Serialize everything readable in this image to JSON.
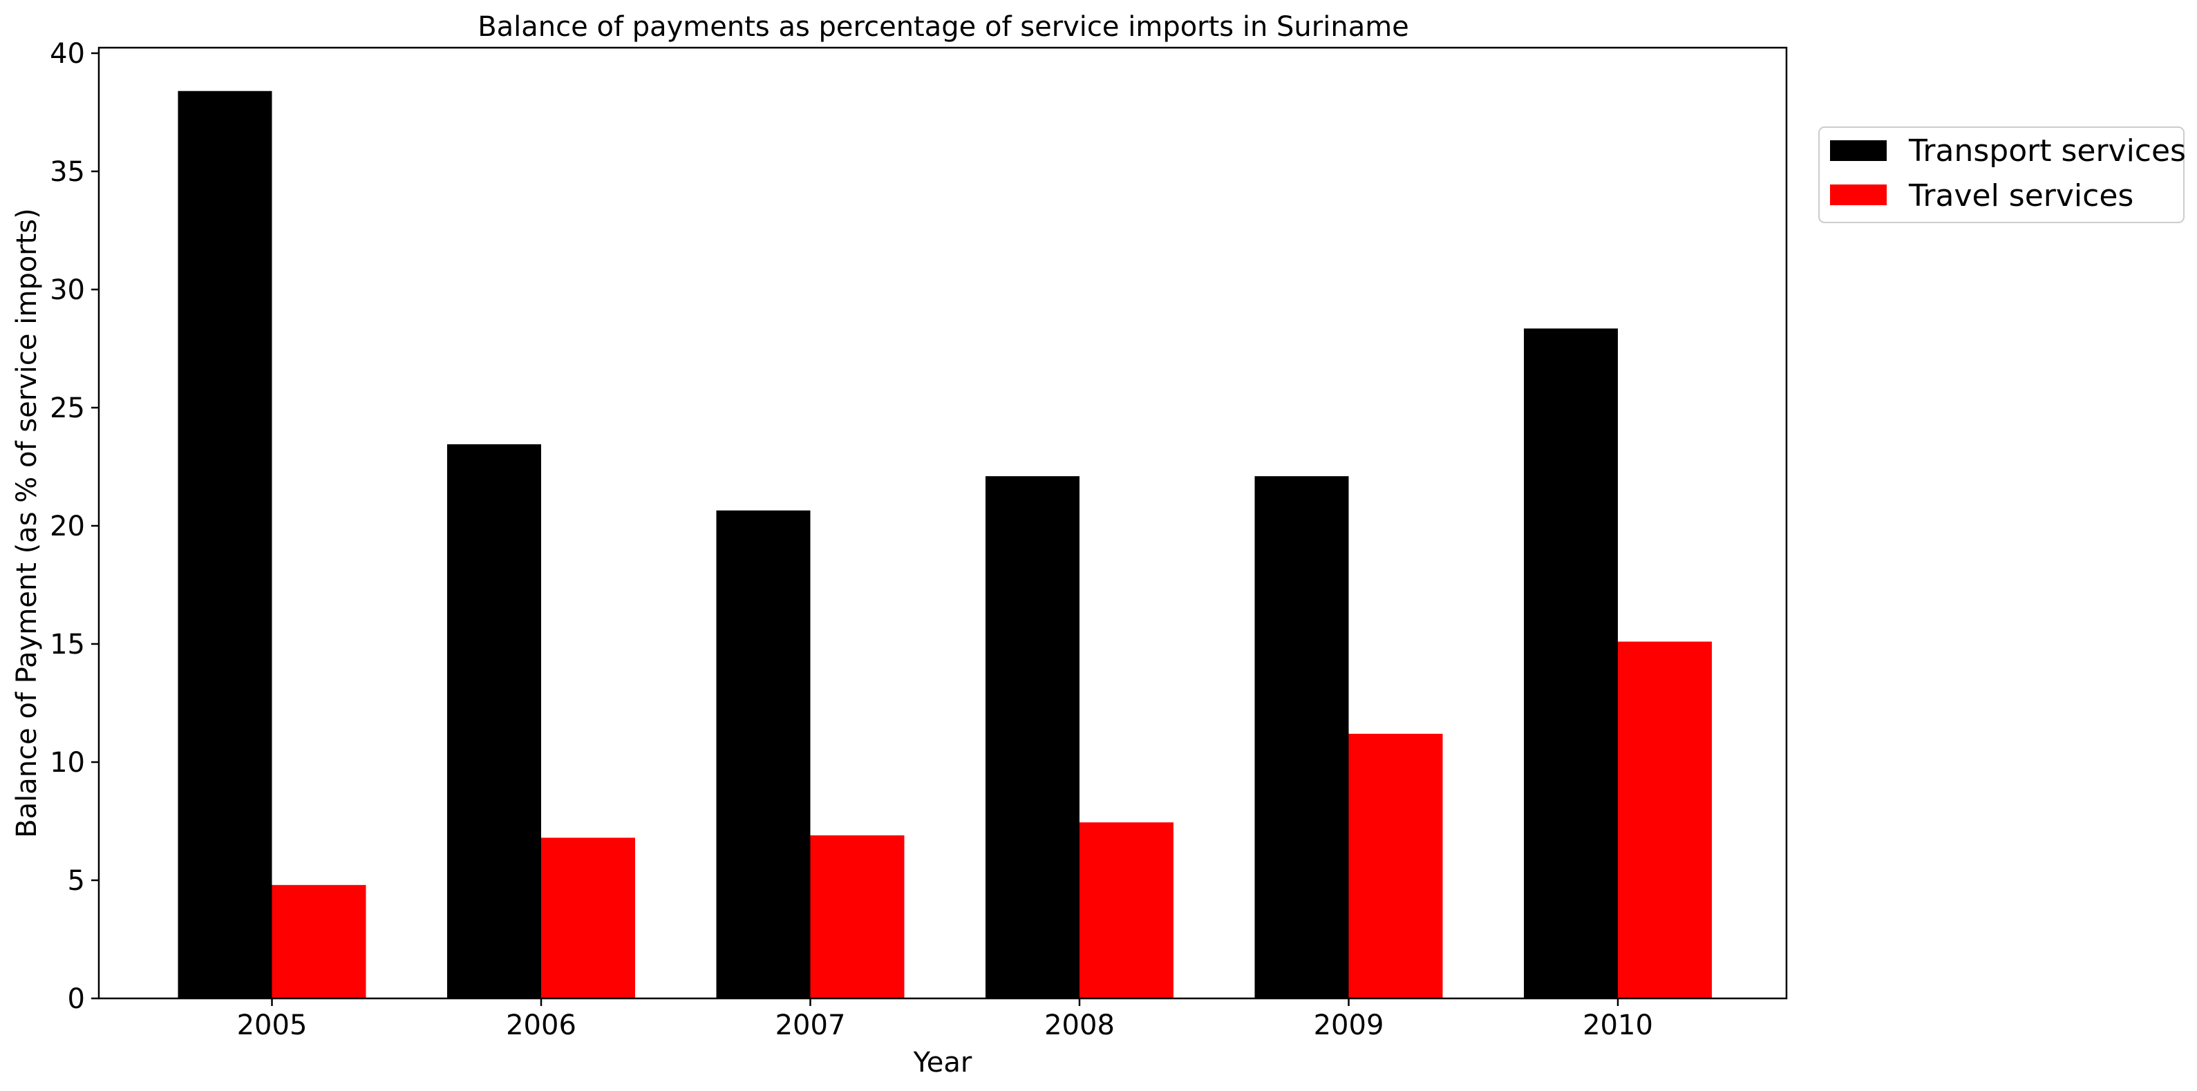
{
  "chart_data": {
    "type": "bar",
    "title": "Balance of payments as percentage of service imports in Suriname",
    "xlabel": "Year",
    "ylabel": "Balance of Payment (as % of service imports)",
    "categories": [
      "2005",
      "2006",
      "2007",
      "2008",
      "2009",
      "2010"
    ],
    "series": [
      {
        "name": "Transport services",
        "color": "#000000",
        "values": [
          38.4,
          23.45,
          20.65,
          22.1,
          22.1,
          28.35
        ]
      },
      {
        "name": "Travel services",
        "color": "#ff0000",
        "values": [
          4.8,
          6.8,
          6.9,
          7.45,
          11.2,
          15.1
        ]
      }
    ],
    "ylim": [
      0,
      40
    ],
    "yticks": [
      "0",
      "5",
      "10",
      "15",
      "20",
      "25",
      "30",
      "35",
      "40"
    ],
    "grid": false,
    "legend_position": "upper right, outside plot"
  }
}
